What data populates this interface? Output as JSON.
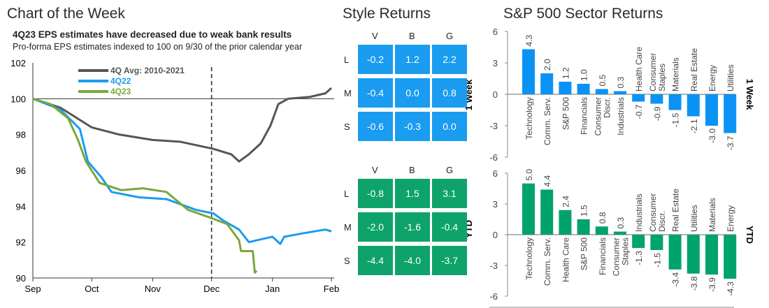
{
  "headers": {
    "left": "Chart of the Week",
    "middle": "Style Returns",
    "right": "S&P 500 Sector Returns"
  },
  "colors": {
    "gray": "#555555",
    "blue": "#1a9cf0",
    "green": "#7aa83a",
    "style_blue": "#1a9cf0",
    "style_green": "#0ea36a",
    "bar_blue": "#0a93f5",
    "bar_green": "#00a36c"
  },
  "chart_data": [
    {
      "type": "line",
      "title": "4Q23 EPS estimates have decreased due to weak bank results",
      "subtitle": "Pro-forma EPS estimates indexed to 100 on 9/30 of the prior calendar year",
      "ylim": [
        90,
        102
      ],
      "yticks": [
        "90",
        "92",
        "94",
        "96",
        "98",
        "100",
        "102"
      ],
      "xticks": [
        "Sep",
        "Oct",
        "Nov",
        "Dec",
        "Jan",
        "Feb"
      ],
      "legend": "top-left",
      "vline": "Dec",
      "series": [
        {
          "name": "4Q Avg: 2010-2021",
          "color": "#555555",
          "points": [
            [
              "09-01",
              100
            ],
            [
              "09-15",
              99.5
            ],
            [
              "10-01",
              98.4
            ],
            [
              "10-15",
              98.0
            ],
            [
              "11-01",
              97.7
            ],
            [
              "11-15",
              97.6
            ],
            [
              "12-02",
              97.2
            ],
            [
              "12-11",
              96.9
            ],
            [
              "12-15",
              96.5
            ],
            [
              "12-20",
              96.9
            ],
            [
              "12-26",
              97.5
            ],
            [
              "12-31",
              98.5
            ],
            [
              "01-04",
              99.7
            ],
            [
              "01-09",
              100.0
            ],
            [
              "01-20",
              100.1
            ],
            [
              "01-28",
              100.3
            ],
            [
              "01-31",
              100.6
            ]
          ]
        },
        {
          "name": "4Q22",
          "color": "#1a9cf0",
          "points": [
            [
              "09-01",
              100
            ],
            [
              "09-15",
              99.4
            ],
            [
              "09-25",
              98.3
            ],
            [
              "09-29",
              96.5
            ],
            [
              "10-06",
              95.6
            ],
            [
              "10-11",
              94.8
            ],
            [
              "10-25",
              94.5
            ],
            [
              "11-08",
              94.4
            ],
            [
              "11-23",
              93.8
            ],
            [
              "12-02",
              93.6
            ],
            [
              "12-07",
              93.2
            ],
            [
              "12-15",
              92.7
            ],
            [
              "12-20",
              92.0
            ],
            [
              "12-24",
              92.1
            ],
            [
              "01-01",
              92.3
            ],
            [
              "01-05",
              91.9
            ],
            [
              "01-07",
              92.3
            ],
            [
              "01-17",
              92.5
            ],
            [
              "01-28",
              92.7
            ],
            [
              "01-31",
              92.6
            ]
          ]
        },
        {
          "name": "4Q23",
          "color": "#7aa83a",
          "points": [
            [
              "09-01",
              100
            ],
            [
              "09-10",
              99.7
            ],
            [
              "09-19",
              98.9
            ],
            [
              "09-24",
              97.7
            ],
            [
              "09-28",
              96.5
            ],
            [
              "10-05",
              95.3
            ],
            [
              "10-16",
              94.9
            ],
            [
              "10-27",
              95.0
            ],
            [
              "11-08",
              94.8
            ],
            [
              "11-19",
              93.8
            ],
            [
              "12-02",
              93.3
            ],
            [
              "12-09",
              93.0
            ],
            [
              "12-15",
              92.1
            ],
            [
              "12-16",
              91.5
            ],
            [
              "12-22",
              91.5
            ],
            [
              "12-23",
              90.3
            ],
            [
              "12-24",
              90.4
            ]
          ]
        }
      ]
    },
    {
      "type": "bar",
      "ylabel": "1 Week",
      "ylim": [
        -6,
        6
      ],
      "yticks": [
        "-6",
        "-3",
        "0",
        "3",
        "6"
      ],
      "color": "#0a93f5",
      "categories": [
        "Technology",
        "Comm. Serv.",
        "S&P 500",
        "Financials",
        "Consumer Discr.",
        "Industrials",
        "Health Care",
        "Consumer Staples",
        "Materials",
        "Real Estate",
        "Energy",
        "Utilities"
      ],
      "values": [
        4.3,
        2.0,
        1.2,
        1.0,
        0.5,
        0.3,
        -0.7,
        -0.9,
        -1.5,
        -2.1,
        -3.0,
        -3.7
      ],
      "labels": [
        "4.3",
        "2.0",
        "1.2",
        "1.0",
        "0.5",
        "0.3",
        "-0.7",
        "-0.9",
        "-1.5",
        "-2.1",
        "-3.0",
        "-3.7"
      ]
    },
    {
      "type": "bar",
      "ylabel": "YTD",
      "ylim": [
        -6,
        6
      ],
      "yticks": [
        "-6",
        "-3",
        "0",
        "3",
        "6"
      ],
      "color": "#00a36c",
      "categories": [
        "Technology",
        "Comm. Serv.",
        "Health Care",
        "S&P 500",
        "Financials",
        "Consumer Staples",
        "Industrials",
        "Consumer Discr.",
        "Real Estate",
        "Utilities",
        "Materials",
        "Energy"
      ],
      "values": [
        5.0,
        4.4,
        2.4,
        1.5,
        0.8,
        0.3,
        -1.3,
        -1.5,
        -3.4,
        -3.8,
        -3.9,
        -4.3
      ],
      "labels": [
        "5.0",
        "4.4",
        "2.4",
        "1.5",
        "0.8",
        "0.3",
        "-1.3",
        "-1.5",
        "-3.4",
        "-3.8",
        "-3.9",
        "-4.3"
      ]
    },
    {
      "type": "heatmap",
      "ylabel": "1 Week",
      "columns": [
        "V",
        "B",
        "G"
      ],
      "rows": [
        "L",
        "M",
        "S"
      ],
      "color": "#1a9cf0",
      "values": [
        [
          "-0.2",
          "1.2",
          "2.2"
        ],
        [
          "-0.4",
          "0.0",
          "0.8"
        ],
        [
          "-0.6",
          "-0.3",
          "0.0"
        ]
      ]
    },
    {
      "type": "heatmap",
      "ylabel": "YTD",
      "columns": [
        "V",
        "B",
        "G"
      ],
      "rows": [
        "L",
        "M",
        "S"
      ],
      "color": "#0ea36a",
      "values": [
        [
          "-0.8",
          "1.5",
          "3.1"
        ],
        [
          "-2.0",
          "-1.6",
          "-0.4"
        ],
        [
          "-4.4",
          "-4.0",
          "-3.7"
        ]
      ]
    }
  ]
}
